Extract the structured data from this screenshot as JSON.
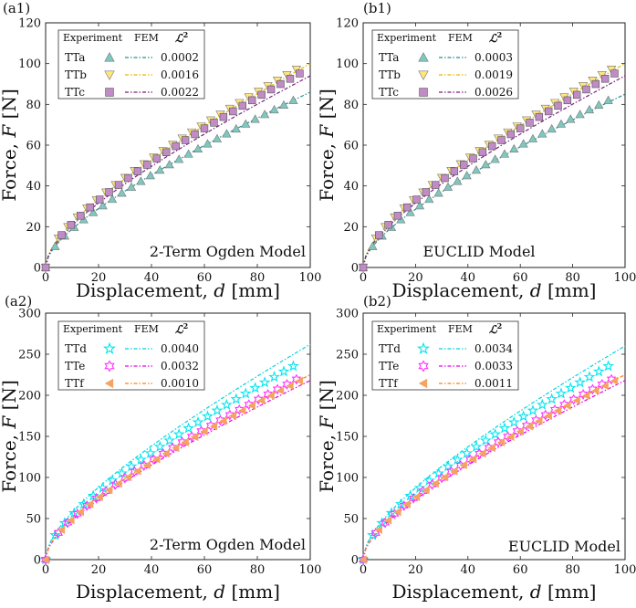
{
  "figure": {
    "x_axis_label_prefix": "Displacement, ",
    "x_axis_label_var": "d",
    "x_axis_label_unit": " [mm]",
    "y_axis_label_prefix": "Force, ",
    "y_axis_label_var": "F",
    "y_axis_label_unit": " [N]",
    "legend_experiment": "Experiment",
    "legend_fem": "FEM",
    "legend_metric": "ℒ",
    "legend_metric_sup": "2"
  },
  "chart_data": [
    {
      "type": "scatter",
      "panel_label": "(a1)",
      "model_label": "2-Term Ogden Model",
      "xlim": [
        0,
        100
      ],
      "ylim": [
        0,
        120
      ],
      "xticks": [
        "0",
        "20",
        "40",
        "60",
        "80",
        "100"
      ],
      "yticks": [
        "0",
        "20",
        "40",
        "60",
        "80",
        "100",
        "120"
      ],
      "series": [
        {
          "name": "TTa",
          "marker": "triangle-up",
          "marker_color": "#7fc7bf",
          "line_color": "#2a8f8a",
          "l2": "0.0002",
          "end_exp": 86,
          "end_fem": 86
        },
        {
          "name": "TTb",
          "marker": "triangle-down",
          "marker_color": "#ffe680",
          "line_color": "#e6b800",
          "l2": "0.0016",
          "end_exp": 101,
          "end_fem": 100
        },
        {
          "name": "TTc",
          "marker": "square",
          "marker_color": "#c08bc6",
          "line_color": "#7a1f7e",
          "l2": "0.0022",
          "end_exp": 98,
          "end_fem": 94
        }
      ]
    },
    {
      "type": "scatter",
      "panel_label": "(b1)",
      "model_label": "EUCLID Model",
      "xlim": [
        0,
        100
      ],
      "ylim": [
        0,
        120
      ],
      "xticks": [
        "0",
        "20",
        "40",
        "60",
        "80",
        "100"
      ],
      "yticks": [
        "0",
        "20",
        "40",
        "60",
        "80",
        "100",
        "120"
      ],
      "series": [
        {
          "name": "TTa",
          "marker": "triangle-up",
          "marker_color": "#7fc7bf",
          "line_color": "#2a8f8a",
          "l2": "0.0003",
          "end_exp": 86,
          "end_fem": 85
        },
        {
          "name": "TTb",
          "marker": "triangle-down",
          "marker_color": "#ffe680",
          "line_color": "#e6b800",
          "l2": "0.0019",
          "end_exp": 101,
          "end_fem": 100
        },
        {
          "name": "TTc",
          "marker": "square",
          "marker_color": "#c08bc6",
          "line_color": "#7a1f7e",
          "l2": "0.0026",
          "end_exp": 98,
          "end_fem": 94
        }
      ]
    },
    {
      "type": "scatter",
      "panel_label": "(a2)",
      "model_label": "2-Term Ogden Model",
      "xlim": [
        0,
        100
      ],
      "ylim": [
        0,
        300
      ],
      "xticks": [
        "0",
        "20",
        "40",
        "60",
        "80",
        "100"
      ],
      "yticks": [
        "0",
        "50",
        "100",
        "150",
        "200",
        "250",
        "300"
      ],
      "series": [
        {
          "name": "TTd",
          "marker": "star",
          "marker_color": "#00e5ee",
          "line_color": "#00d2e0",
          "l2": "0.0040",
          "end_exp": 247,
          "end_fem": 262
        },
        {
          "name": "TTe",
          "marker": "hexagram",
          "marker_color": "#ff33ff",
          "line_color": "#e600e6",
          "l2": "0.0032",
          "end_exp": 228,
          "end_fem": 218
        },
        {
          "name": "TTf",
          "marker": "triangle-left",
          "marker_color": "#f4a460",
          "line_color": "#ff7f0e",
          "l2": "0.0010",
          "end_exp": 224,
          "end_fem": 225
        }
      ]
    },
    {
      "type": "scatter",
      "panel_label": "(b2)",
      "model_label": "EUCLID Model",
      "xlim": [
        0,
        100
      ],
      "ylim": [
        0,
        300
      ],
      "xticks": [
        "0",
        "20",
        "40",
        "60",
        "80",
        "100"
      ],
      "yticks": [
        "0",
        "50",
        "100",
        "150",
        "200",
        "250",
        "300"
      ],
      "series": [
        {
          "name": "TTd",
          "marker": "star",
          "marker_color": "#00e5ee",
          "line_color": "#00d2e0",
          "l2": "0.0034",
          "end_exp": 247,
          "end_fem": 260
        },
        {
          "name": "TTe",
          "marker": "hexagram",
          "marker_color": "#ff33ff",
          "line_color": "#e600e6",
          "l2": "0.0033",
          "end_exp": 228,
          "end_fem": 218
        },
        {
          "name": "TTf",
          "marker": "triangle-left",
          "marker_color": "#f4a460",
          "line_color": "#ff7f0e",
          "l2": "0.0011",
          "end_exp": 224,
          "end_fem": 225
        }
      ]
    }
  ]
}
